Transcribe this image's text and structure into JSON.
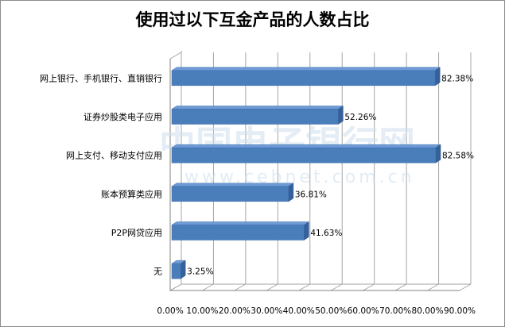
{
  "chart_data": {
    "type": "bar",
    "orientation": "horizontal",
    "title": "使用过以下互金产品的人数占比",
    "categories": [
      "网上银行、手机银行、直销银行",
      "证券炒股类电子应用",
      "网上支付、移动支付应用",
      "账本预算类应用",
      "P2P网贷应用",
      "无"
    ],
    "values": [
      82.38,
      52.26,
      82.58,
      36.81,
      41.63,
      3.25
    ],
    "value_labels": [
      "82.38%",
      "52.26%",
      "82.58%",
      "36.81%",
      "41.63%",
      "3.25%"
    ],
    "xlim": [
      0,
      90
    ],
    "xticks": [
      0,
      10,
      20,
      30,
      40,
      50,
      60,
      70,
      80,
      90
    ],
    "xtick_labels": [
      "0.00%",
      "10.00%",
      "20.00%",
      "30.00%",
      "40.00%",
      "50.00%",
      "60.00%",
      "70.00%",
      "80.00%",
      "90.00%"
    ],
    "grid": true,
    "bar_color": "#4a7ebb",
    "legend": "none"
  },
  "watermark": {
    "main": "中国电子银行网",
    "sub": "www.cebnet.com.cn"
  }
}
